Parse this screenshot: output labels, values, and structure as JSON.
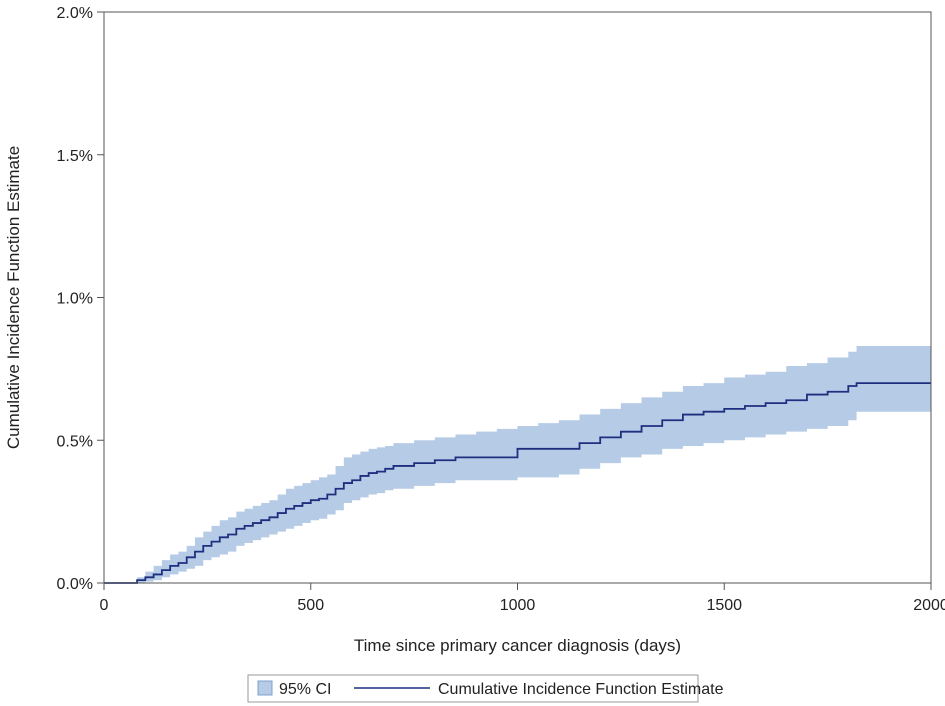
{
  "chart_data": {
    "type": "line",
    "title": "",
    "xlabel": "Time since primary cancer diagnosis (days)",
    "ylabel": "Cumulative Incidence Function Estimate",
    "xlim": [
      0,
      2000
    ],
    "ylim": [
      0,
      2.0
    ],
    "x_ticks": [
      0,
      500,
      1000,
      1500,
      2000
    ],
    "x_tick_labels": [
      "0",
      "500",
      "1000",
      "1500",
      "2000"
    ],
    "y_ticks": [
      0,
      0.5,
      1.0,
      1.5,
      2.0
    ],
    "y_tick_labels": [
      "0.0%",
      "0.5%",
      "1.0%",
      "1.5%",
      "2.0%"
    ],
    "grid": false,
    "legend_position": "bottom-center",
    "colors": {
      "ci_fill": "#b5cbe6",
      "ci_edge": "#7f9fc9",
      "line": "#1f2f80",
      "axis": "#555555"
    },
    "series": [
      {
        "name": "Cumulative Incidence Function Estimate",
        "x": [
          0,
          60,
          80,
          100,
          120,
          140,
          160,
          180,
          200,
          220,
          240,
          260,
          280,
          300,
          320,
          340,
          360,
          380,
          400,
          420,
          440,
          460,
          480,
          500,
          520,
          540,
          560,
          580,
          600,
          620,
          640,
          660,
          680,
          700,
          750,
          800,
          850,
          900,
          950,
          1000,
          1050,
          1100,
          1150,
          1200,
          1250,
          1300,
          1350,
          1400,
          1450,
          1500,
          1550,
          1600,
          1650,
          1700,
          1750,
          1800,
          1820,
          2000
        ],
        "y": [
          0.0,
          0.0,
          0.01,
          0.02,
          0.03,
          0.045,
          0.06,
          0.07,
          0.09,
          0.11,
          0.13,
          0.145,
          0.16,
          0.17,
          0.19,
          0.2,
          0.21,
          0.22,
          0.23,
          0.245,
          0.26,
          0.27,
          0.28,
          0.29,
          0.295,
          0.31,
          0.33,
          0.35,
          0.36,
          0.375,
          0.385,
          0.39,
          0.4,
          0.41,
          0.42,
          0.43,
          0.44,
          0.44,
          0.44,
          0.47,
          0.47,
          0.47,
          0.49,
          0.51,
          0.53,
          0.55,
          0.57,
          0.59,
          0.6,
          0.61,
          0.62,
          0.63,
          0.64,
          0.66,
          0.67,
          0.69,
          0.7,
          0.7
        ],
        "ci_lower": [
          0.0,
          0.0,
          0.0,
          0.005,
          0.01,
          0.02,
          0.03,
          0.04,
          0.05,
          0.06,
          0.08,
          0.09,
          0.1,
          0.11,
          0.13,
          0.14,
          0.15,
          0.16,
          0.17,
          0.18,
          0.19,
          0.2,
          0.21,
          0.22,
          0.225,
          0.24,
          0.255,
          0.28,
          0.29,
          0.3,
          0.31,
          0.315,
          0.325,
          0.33,
          0.34,
          0.35,
          0.36,
          0.36,
          0.36,
          0.37,
          0.37,
          0.38,
          0.4,
          0.42,
          0.44,
          0.45,
          0.47,
          0.48,
          0.49,
          0.5,
          0.51,
          0.52,
          0.53,
          0.54,
          0.55,
          0.57,
          0.6,
          0.6
        ],
        "ci_upper": [
          0.0,
          0.0,
          0.02,
          0.04,
          0.06,
          0.08,
          0.1,
          0.11,
          0.13,
          0.16,
          0.18,
          0.2,
          0.22,
          0.23,
          0.25,
          0.26,
          0.27,
          0.28,
          0.29,
          0.31,
          0.33,
          0.34,
          0.35,
          0.36,
          0.37,
          0.38,
          0.41,
          0.44,
          0.45,
          0.46,
          0.47,
          0.475,
          0.48,
          0.49,
          0.5,
          0.51,
          0.52,
          0.53,
          0.54,
          0.55,
          0.56,
          0.57,
          0.59,
          0.61,
          0.63,
          0.65,
          0.67,
          0.69,
          0.7,
          0.72,
          0.73,
          0.74,
          0.76,
          0.77,
          0.79,
          0.81,
          0.83,
          0.83
        ]
      }
    ],
    "legend": {
      "ci_label": "95% CI",
      "line_label": "Cumulative Incidence Function Estimate"
    }
  }
}
